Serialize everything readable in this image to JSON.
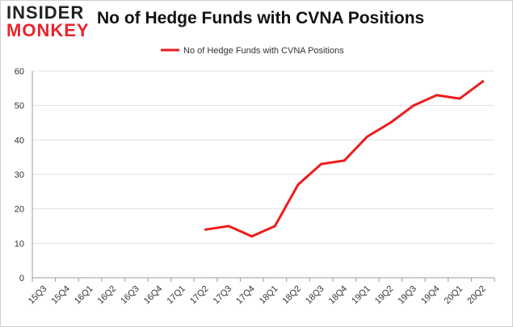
{
  "logo": {
    "line1": "INSIDER",
    "line2": "MONKEY"
  },
  "title": "No of Hedge Funds with CVNA Positions",
  "colors": {
    "series": "#ee1c1c",
    "grid": "#e0e0e0",
    "axis": "#999999"
  },
  "chart_data": {
    "type": "line",
    "title": "No of Hedge Funds with CVNA Positions",
    "xlabel": "",
    "ylabel": "",
    "ylim": [
      0,
      60
    ],
    "yticks": [
      0,
      10,
      20,
      30,
      40,
      50,
      60
    ],
    "grid": true,
    "legend": "top-center",
    "categories": [
      "15Q3",
      "15Q4",
      "16Q1",
      "16Q2",
      "16Q3",
      "16Q4",
      "17Q1",
      "17Q2",
      "17Q3",
      "17Q4",
      "18Q1",
      "18Q2",
      "18Q3",
      "18Q4",
      "19Q1",
      "19Q2",
      "19Q3",
      "19Q4",
      "20Q1",
      "20Q2"
    ],
    "series": [
      {
        "name": "No of Hedge Funds with CVNA Positions",
        "values": [
          null,
          null,
          null,
          null,
          null,
          null,
          null,
          14,
          15,
          12,
          15,
          27,
          33,
          34,
          41,
          45,
          50,
          53,
          52,
          57
        ]
      }
    ]
  }
}
